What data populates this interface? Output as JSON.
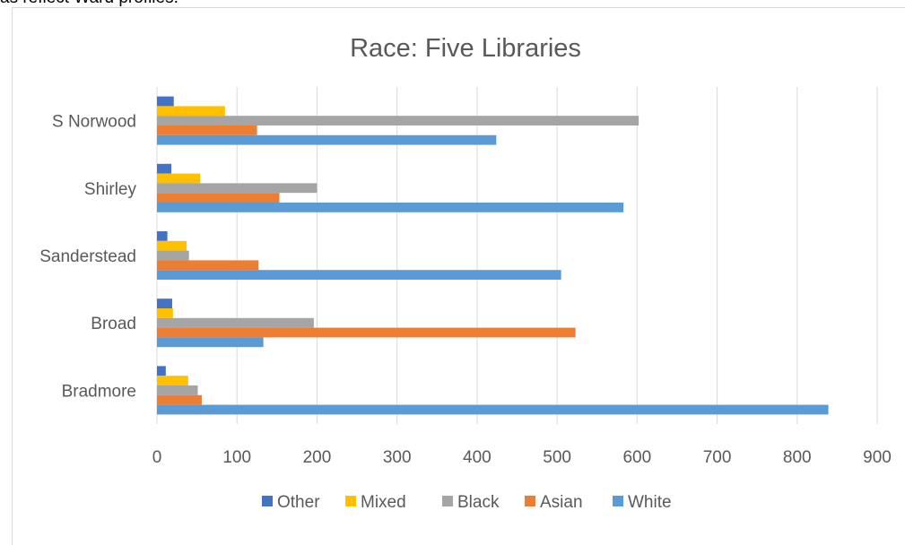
{
  "page": {
    "top_text_fragment": "as reflect Ward profiles."
  },
  "chart_data": {
    "type": "bar",
    "orientation": "horizontal",
    "title": "Race: Five Libraries",
    "categories": [
      "Bradmore",
      "Broad",
      "Sanderstead",
      "Shirley",
      "S Norwood"
    ],
    "series": [
      {
        "name": "Other",
        "color": "#4472c4",
        "values": [
          11,
          19,
          13,
          18,
          21
        ]
      },
      {
        "name": "Mixed",
        "color": "#ffc000",
        "values": [
          39,
          20,
          37,
          54,
          85
        ]
      },
      {
        "name": "Black",
        "color": "#a5a5a5",
        "values": [
          51,
          196,
          40,
          200,
          602
        ]
      },
      {
        "name": "Asian",
        "color": "#ed7d31",
        "values": [
          56,
          523,
          127,
          153,
          125
        ]
      },
      {
        "name": "White",
        "color": "#5b9bd5",
        "values": [
          839,
          133,
          505,
          583,
          424
        ]
      }
    ],
    "xlim": [
      0,
      900
    ],
    "xticks": [
      "0",
      "100",
      "200",
      "300",
      "400",
      "500",
      "600",
      "700",
      "800",
      "900"
    ],
    "grid": true,
    "legend": {
      "position": "bottom",
      "order": [
        "Other",
        "Mixed",
        "Black",
        "Asian",
        "White"
      ]
    }
  }
}
